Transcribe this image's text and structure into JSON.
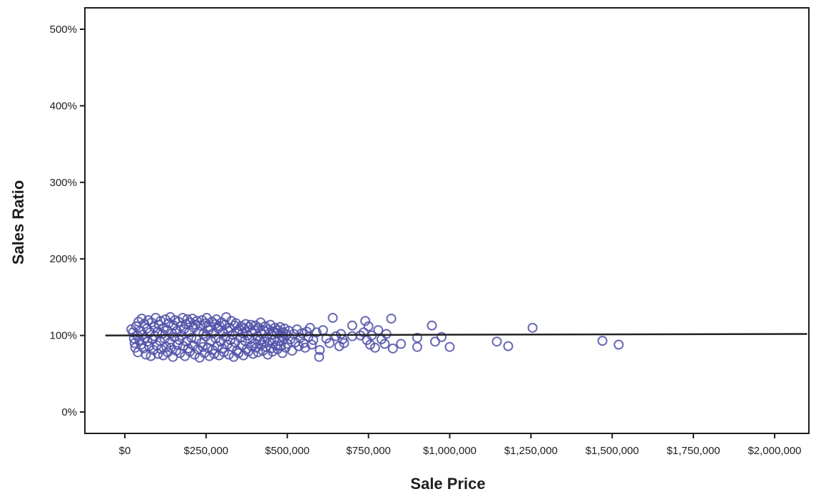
{
  "chart_data": {
    "type": "scatter",
    "xlabel": "Sale Price",
    "ylabel": "Sales Ratio",
    "xlim": [
      0,
      2100000
    ],
    "ylim": [
      -8,
      530
    ],
    "x_ticks": [
      {
        "value": 0,
        "label": "$0"
      },
      {
        "value": 250000,
        "label": "$250,000"
      },
      {
        "value": 500000,
        "label": "$500,000"
      },
      {
        "value": 750000,
        "label": "$750,000"
      },
      {
        "value": 1000000,
        "label": "$1,000,000"
      },
      {
        "value": 1250000,
        "label": "$1,250,000"
      },
      {
        "value": 1500000,
        "label": "$1,500,000"
      },
      {
        "value": 1750000,
        "label": "$1,750,000"
      },
      {
        "value": 2000000,
        "label": "$2,000,000"
      }
    ],
    "y_ticks": [
      {
        "value": 0,
        "label": "0%"
      },
      {
        "value": 100,
        "label": "100%"
      },
      {
        "value": 200,
        "label": "200%"
      },
      {
        "value": 300,
        "label": "300%"
      },
      {
        "value": 400,
        "label": "400%"
      },
      {
        "value": 500,
        "label": "500%"
      }
    ],
    "reference_line": {
      "y_start": 100,
      "y_end": 102,
      "x_start": -60000,
      "x_end": 2100000
    },
    "grid": false,
    "legend": "none",
    "marker": "open-circle",
    "colors": {
      "points": "#4f4fa8",
      "line": "#222222",
      "axis": "#1e1e1e"
    },
    "points": [
      [
        20000,
        108
      ],
      [
        25000,
        104
      ],
      [
        28000,
        96
      ],
      [
        30000,
        90
      ],
      [
        32000,
        84
      ],
      [
        35000,
        112
      ],
      [
        38000,
        100
      ],
      [
        40000,
        78
      ],
      [
        42000,
        118
      ],
      [
        45000,
        94
      ],
      [
        48000,
        106
      ],
      [
        50000,
        88
      ],
      [
        52000,
        122
      ],
      [
        55000,
        101
      ],
      [
        58000,
        83
      ],
      [
        60000,
        115
      ],
      [
        62000,
        97
      ],
      [
        65000,
        75
      ],
      [
        68000,
        109
      ],
      [
        70000,
        92
      ],
      [
        72000,
        120
      ],
      [
        75000,
        86
      ],
      [
        78000,
        104
      ],
      [
        80000,
        73
      ],
      [
        82000,
        117
      ],
      [
        85000,
        95
      ],
      [
        88000,
        81
      ],
      [
        90000,
        111
      ],
      [
        92000,
        99
      ],
      [
        95000,
        123
      ],
      [
        98000,
        87
      ],
      [
        100000,
        105
      ],
      [
        102000,
        76
      ],
      [
        105000,
        114
      ],
      [
        108000,
        93
      ],
      [
        110000,
        119
      ],
      [
        112000,
        82
      ],
      [
        115000,
        102
      ],
      [
        118000,
        74
      ],
      [
        120000,
        110
      ],
      [
        122000,
        96
      ],
      [
        125000,
        121
      ],
      [
        128000,
        85
      ],
      [
        130000,
        107
      ],
      [
        132000,
        78
      ],
      [
        135000,
        116
      ],
      [
        138000,
        91
      ],
      [
        140000,
        124
      ],
      [
        142000,
        84
      ],
      [
        145000,
        103
      ],
      [
        148000,
        72
      ],
      [
        150000,
        113
      ],
      [
        152000,
        98
      ],
      [
        155000,
        120
      ],
      [
        158000,
        80
      ],
      [
        160000,
        106
      ],
      [
        162000,
        88
      ],
      [
        165000,
        118
      ],
      [
        168000,
        94
      ],
      [
        170000,
        77
      ],
      [
        172000,
        112
      ],
      [
        175000,
        100
      ],
      [
        178000,
        123
      ],
      [
        180000,
        86
      ],
      [
        182000,
        108
      ],
      [
        185000,
        73
      ],
      [
        188000,
        115
      ],
      [
        190000,
        92
      ],
      [
        192000,
        121
      ],
      [
        195000,
        83
      ],
      [
        198000,
        104
      ],
      [
        200000,
        79
      ],
      [
        202000,
        117
      ],
      [
        205000,
        97
      ],
      [
        208000,
        122
      ],
      [
        210000,
        87
      ],
      [
        212000,
        110
      ],
      [
        215000,
        75
      ],
      [
        218000,
        114
      ],
      [
        220000,
        95
      ],
      [
        222000,
        119
      ],
      [
        225000,
        82
      ],
      [
        228000,
        105
      ],
      [
        230000,
        71
      ],
      [
        232000,
        113
      ],
      [
        235000,
        90
      ],
      [
        238000,
        120
      ],
      [
        240000,
        85
      ],
      [
        242000,
        102
      ],
      [
        245000,
        77
      ],
      [
        248000,
        116
      ],
      [
        250000,
        99
      ],
      [
        252000,
        123
      ],
      [
        255000,
        84
      ],
      [
        258000,
        107
      ],
      [
        260000,
        73
      ],
      [
        262000,
        111
      ],
      [
        265000,
        93
      ],
      [
        268000,
        118
      ],
      [
        270000,
        81
      ],
      [
        272000,
        103
      ],
      [
        275000,
        76
      ],
      [
        278000,
        115
      ],
      [
        280000,
        96
      ],
      [
        282000,
        121
      ],
      [
        285000,
        86
      ],
      [
        288000,
        109
      ],
      [
        290000,
        74
      ],
      [
        292000,
        112
      ],
      [
        295000,
        92
      ],
      [
        298000,
        117
      ],
      [
        300000,
        83
      ],
      [
        302000,
        104
      ],
      [
        305000,
        78
      ],
      [
        308000,
        114
      ],
      [
        310000,
        98
      ],
      [
        312000,
        124
      ],
      [
        315000,
        88
      ],
      [
        318000,
        106
      ],
      [
        320000,
        75
      ],
      [
        322000,
        110
      ],
      [
        325000,
        94
      ],
      [
        328000,
        119
      ],
      [
        330000,
        85
      ],
      [
        332000,
        101
      ],
      [
        335000,
        72
      ],
      [
        338000,
        113
      ],
      [
        340000,
        91
      ],
      [
        342000,
        116
      ],
      [
        345000,
        80
      ],
      [
        348000,
        105
      ],
      [
        350000,
        77
      ],
      [
        352000,
        108
      ],
      [
        355000,
        97
      ],
      [
        358000,
        112
      ],
      [
        360000,
        87
      ],
      [
        362000,
        103
      ],
      [
        365000,
        74
      ],
      [
        368000,
        109
      ],
      [
        370000,
        93
      ],
      [
        372000,
        115
      ],
      [
        375000,
        82
      ],
      [
        378000,
        100
      ],
      [
        380000,
        79
      ],
      [
        382000,
        111
      ],
      [
        385000,
        95
      ],
      [
        388000,
        114
      ],
      [
        390000,
        86
      ],
      [
        392000,
        104
      ],
      [
        395000,
        76
      ],
      [
        398000,
        107
      ],
      [
        400000,
        90
      ],
      [
        402000,
        113
      ],
      [
        405000,
        84
      ],
      [
        408000,
        99
      ],
      [
        410000,
        78
      ],
      [
        412000,
        110
      ],
      [
        415000,
        94
      ],
      [
        418000,
        117
      ],
      [
        420000,
        88
      ],
      [
        422000,
        102
      ],
      [
        425000,
        80
      ],
      [
        428000,
        106
      ],
      [
        430000,
        92
      ],
      [
        432000,
        112
      ],
      [
        435000,
        85
      ],
      [
        438000,
        98
      ],
      [
        440000,
        75
      ],
      [
        442000,
        108
      ],
      [
        445000,
        91
      ],
      [
        448000,
        114
      ],
      [
        450000,
        83
      ],
      [
        452000,
        101
      ],
      [
        455000,
        79
      ],
      [
        458000,
        105
      ],
      [
        460000,
        95
      ],
      [
        462000,
        110
      ],
      [
        465000,
        87
      ],
      [
        468000,
        103
      ],
      [
        470000,
        82
      ],
      [
        472000,
        107
      ],
      [
        475000,
        93
      ],
      [
        478000,
        111
      ],
      [
        480000,
        86
      ],
      [
        482000,
        99
      ],
      [
        485000,
        77
      ],
      [
        488000,
        104
      ],
      [
        490000,
        96
      ],
      [
        492000,
        109
      ],
      [
        495000,
        84
      ],
      [
        498000,
        101
      ],
      [
        500000,
        89
      ],
      [
        505000,
        106
      ],
      [
        510000,
        95
      ],
      [
        515000,
        80
      ],
      [
        520000,
        102
      ],
      [
        525000,
        91
      ],
      [
        530000,
        108
      ],
      [
        535000,
        86
      ],
      [
        540000,
        97
      ],
      [
        545000,
        103
      ],
      [
        550000,
        90
      ],
      [
        555000,
        84
      ],
      [
        560000,
        105
      ],
      [
        565000,
        98
      ],
      [
        570000,
        110
      ],
      [
        575000,
        88
      ],
      [
        580000,
        94
      ],
      [
        590000,
        104
      ],
      [
        598000,
        72
      ],
      [
        600000,
        81
      ],
      [
        610000,
        107
      ],
      [
        620000,
        96
      ],
      [
        630000,
        90
      ],
      [
        640000,
        123
      ],
      [
        650000,
        99
      ],
      [
        660000,
        86
      ],
      [
        665000,
        102
      ],
      [
        670000,
        95
      ],
      [
        675000,
        90
      ],
      [
        700000,
        113
      ],
      [
        700000,
        99
      ],
      [
        725000,
        100
      ],
      [
        735000,
        104
      ],
      [
        740000,
        119
      ],
      [
        745000,
        94
      ],
      [
        750000,
        112
      ],
      [
        755000,
        88
      ],
      [
        760000,
        100
      ],
      [
        770000,
        84
      ],
      [
        780000,
        107
      ],
      [
        790000,
        95
      ],
      [
        800000,
        89
      ],
      [
        805000,
        102
      ],
      [
        820000,
        122
      ],
      [
        825000,
        83
      ],
      [
        850000,
        89
      ],
      [
        900000,
        97
      ],
      [
        900000,
        85
      ],
      [
        945000,
        113
      ],
      [
        955000,
        92
      ],
      [
        975000,
        98
      ],
      [
        1000000,
        85
      ],
      [
        1145000,
        92
      ],
      [
        1180000,
        86
      ],
      [
        1255000,
        110
      ],
      [
        1470000,
        93
      ],
      [
        1520000,
        88
      ]
    ]
  }
}
